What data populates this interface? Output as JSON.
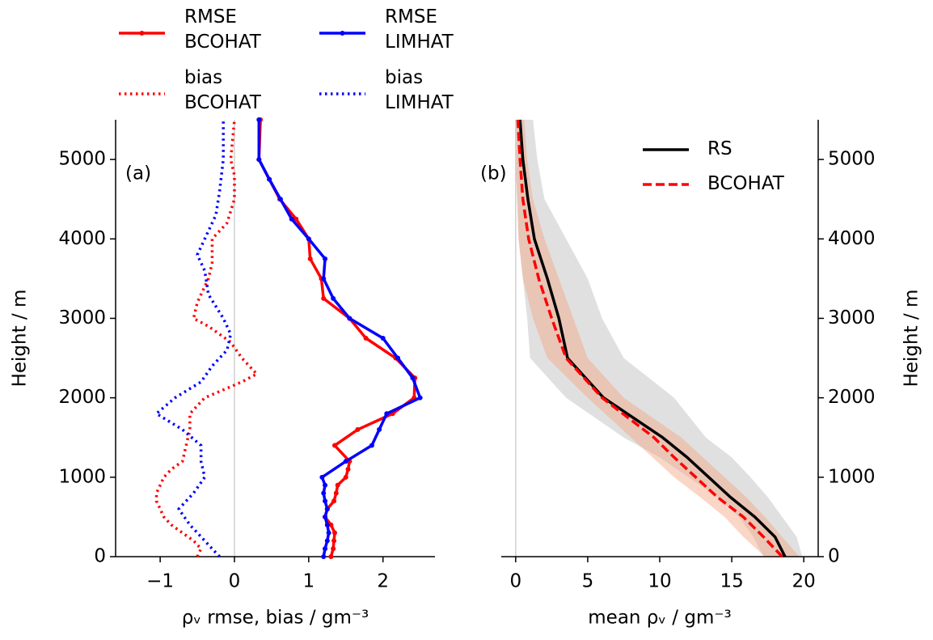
{
  "chart_data": [
    {
      "type": "profile",
      "annotation": "(a)",
      "xlabel": "ρᵥ rmse, bias / gm⁻³",
      "ylabel": "Height / m",
      "xlim": [
        -1.6,
        2.7
      ],
      "ylim": [
        0,
        5500
      ],
      "xticks": [
        {
          "value": -1,
          "label": "−1"
        },
        0,
        1,
        2
      ],
      "yticks": [
        0,
        1000,
        2000,
        3000,
        4000,
        5000
      ],
      "vline": 0,
      "yaxis_side": "left",
      "legend": "above",
      "series": [
        {
          "name": "RMSE\nBCOHAT",
          "color": "#ff0000",
          "linestyle": "solid",
          "marker": true,
          "heights": [
            0,
            100,
            200,
            300,
            400,
            500,
            600,
            700,
            800,
            900,
            1000,
            1100,
            1200,
            1400,
            1600,
            1800,
            2000,
            2250,
            2500,
            2750,
            3000,
            3250,
            3500,
            3750,
            4000,
            4250,
            4500,
            4750,
            5000,
            5500
          ],
          "values": [
            1.3,
            1.33,
            1.34,
            1.35,
            1.3,
            1.22,
            1.25,
            1.34,
            1.37,
            1.39,
            1.5,
            1.53,
            1.55,
            1.35,
            1.66,
            2.13,
            2.42,
            2.43,
            2.17,
            1.77,
            1.55,
            1.2,
            1.17,
            1.02,
            1.0,
            0.83,
            0.61,
            0.47,
            0.33,
            0.35
          ]
        },
        {
          "name": "bias\nBCOHAT",
          "color": "#ff0000",
          "linestyle": "dotted",
          "marker": false,
          "heights": [
            0,
            100,
            200,
            300,
            400,
            500,
            600,
            700,
            800,
            900,
            1000,
            1100,
            1200,
            1400,
            1600,
            1800,
            2000,
            2200,
            2300,
            2500,
            2700,
            2900,
            3000,
            3200,
            3500,
            3700,
            4000,
            4200,
            4500,
            4800,
            5000,
            5500
          ],
          "values": [
            -0.5,
            -0.45,
            -0.55,
            -0.7,
            -0.85,
            -0.95,
            -1.0,
            -1.05,
            -1.05,
            -1.0,
            -0.95,
            -0.85,
            -0.7,
            -0.65,
            -0.6,
            -0.6,
            -0.4,
            0.1,
            0.3,
            0.1,
            -0.05,
            -0.35,
            -0.55,
            -0.5,
            -0.35,
            -0.3,
            -0.3,
            -0.1,
            0.0,
            0.0,
            -0.05,
            0.0
          ]
        },
        {
          "name": "RMSE\nLIMHAT",
          "color": "#0000ff",
          "linestyle": "solid",
          "marker": true,
          "heights": [
            0,
            100,
            200,
            300,
            400,
            500,
            600,
            700,
            800,
            900,
            1000,
            1200,
            1400,
            1600,
            1800,
            2000,
            2250,
            2500,
            2750,
            3000,
            3250,
            3500,
            3750,
            4000,
            4250,
            4500,
            4750,
            5000,
            5500
          ],
          "values": [
            1.2,
            1.22,
            1.25,
            1.27,
            1.25,
            1.22,
            1.25,
            1.22,
            1.2,
            1.22,
            1.18,
            1.5,
            1.85,
            1.95,
            2.05,
            2.5,
            2.4,
            2.2,
            2.0,
            1.55,
            1.33,
            1.2,
            1.22,
            1.0,
            0.77,
            0.62,
            0.47,
            0.33,
            0.33
          ]
        },
        {
          "name": "bias\nLIMHAT",
          "color": "#0000ff",
          "linestyle": "dotted",
          "marker": false,
          "heights": [
            0,
            200,
            400,
            600,
            800,
            1000,
            1200,
            1400,
            1600,
            1800,
            2000,
            2200,
            2400,
            2600,
            2800,
            3000,
            3300,
            3600,
            3800,
            4000,
            4300,
            4600,
            5000,
            5300,
            5500
          ],
          "values": [
            -0.2,
            -0.4,
            -0.6,
            -0.75,
            -0.55,
            -0.4,
            -0.45,
            -0.45,
            -0.7,
            -1.05,
            -0.8,
            -0.45,
            -0.3,
            -0.1,
            -0.05,
            -0.15,
            -0.35,
            -0.4,
            -0.5,
            -0.4,
            -0.25,
            -0.2,
            -0.15,
            -0.15,
            -0.15
          ]
        }
      ]
    },
    {
      "type": "profile",
      "annotation": "(b)",
      "xlabel": "mean ρᵥ / gm⁻³",
      "ylabel": "Height / m",
      "xlim": [
        -1,
        21
      ],
      "ylim": [
        0,
        5500
      ],
      "xticks": [
        0,
        5,
        10,
        15,
        20
      ],
      "yticks": [
        0,
        1000,
        2000,
        3000,
        4000,
        5000
      ],
      "vline": 0,
      "yaxis_side": "right",
      "legend": "upper right",
      "series": [
        {
          "name": "RS",
          "color": "#000000",
          "band_color": "#bbbbbb",
          "linestyle": "solid",
          "marker": false,
          "heights": [
            0,
            250,
            500,
            750,
            1000,
            1250,
            1500,
            2000,
            2500,
            3000,
            3500,
            4000,
            4500,
            5000,
            5500
          ],
          "values": [
            18.7,
            18.0,
            16.6,
            14.9,
            13.4,
            11.9,
            10.2,
            6.1,
            3.6,
            3.0,
            2.2,
            1.3,
            0.85,
            0.5,
            0.3
          ],
          "band_lower": [
            17.2,
            16.5,
            15.5,
            14,
            12,
            10,
            7.5,
            3.5,
            1.0,
            0.8,
            0.5,
            0.2,
            0.1,
            0,
            0
          ],
          "band_upper": [
            19.9,
            19.5,
            18.5,
            17.5,
            16.3,
            15,
            13.2,
            11,
            7.5,
            6,
            5,
            3.5,
            2,
            1.5,
            1.2
          ]
        },
        {
          "name": "BCOHAT",
          "color": "#ff0000",
          "band_color": "#f4a582",
          "linestyle": "dashed",
          "marker": false,
          "heights": [
            0,
            250,
            500,
            750,
            1000,
            1250,
            1500,
            2000,
            2500,
            3000,
            3500,
            4000,
            4500,
            5000,
            5500
          ],
          "values": [
            18.5,
            17.2,
            15.8,
            14.0,
            12.5,
            11.0,
            9.6,
            6.0,
            3.5,
            2.5,
            1.6,
            0.9,
            0.5,
            0.3,
            0.15
          ],
          "band_lower": [
            17.3,
            15.8,
            14.5,
            12.8,
            11,
            9.5,
            8,
            5,
            2.2,
            1.2,
            0.5,
            0.2,
            0.1,
            0,
            0
          ],
          "band_upper": [
            19.7,
            18.5,
            17.3,
            16,
            14.5,
            13,
            11.5,
            7.5,
            5,
            4,
            3,
            2,
            1.2,
            0.8,
            0.6
          ]
        }
      ]
    }
  ]
}
